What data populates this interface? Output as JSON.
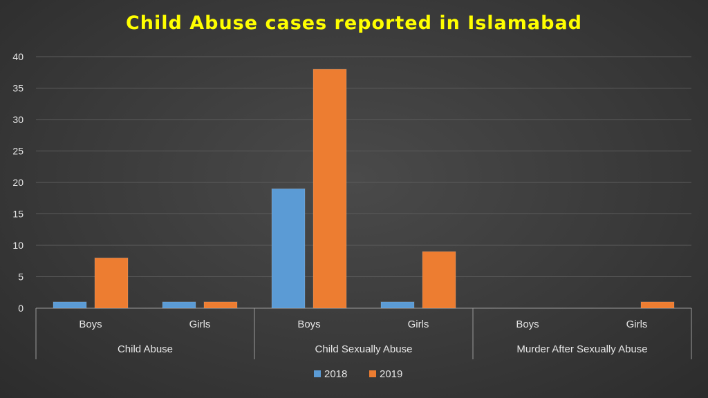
{
  "chart_data": {
    "type": "bar",
    "title": "Child Abuse cases reported in Islamabad",
    "groups": [
      {
        "label": "Child Abuse",
        "categories": [
          "Boys",
          "Girls"
        ]
      },
      {
        "label": "Child Sexually Abuse",
        "categories": [
          "Boys",
          "Girls"
        ]
      },
      {
        "label": "Murder After Sexually Abuse",
        "categories": [
          "Boys",
          "Girls"
        ]
      }
    ],
    "categories": [
      "Boys",
      "Girls",
      "Boys",
      "Girls",
      "Boys",
      "Girls"
    ],
    "series": [
      {
        "name": "2018",
        "color": "#5b9bd5",
        "values": [
          1,
          1,
          19,
          1,
          0,
          0
        ]
      },
      {
        "name": "2019",
        "color": "#ed7d31",
        "values": [
          8,
          1,
          38,
          9,
          0,
          1
        ]
      }
    ],
    "ylim": [
      0,
      40
    ],
    "yticks": [
      0,
      5,
      10,
      15,
      20,
      25,
      30,
      35,
      40
    ],
    "grid": true,
    "legend_position": "bottom"
  }
}
